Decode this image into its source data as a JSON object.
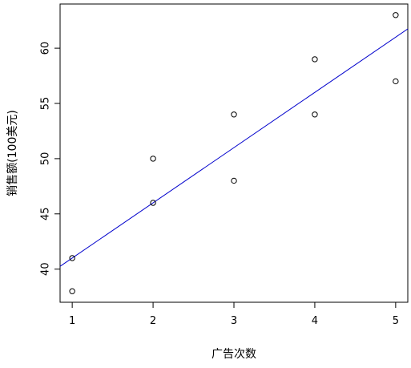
{
  "chart_data": {
    "type": "scatter",
    "xlabel": "广告次数",
    "ylabel": "销售额(100美元)",
    "xlim": [
      0.85,
      5.15
    ],
    "ylim": [
      37.0,
      64.0
    ],
    "x_ticks": [
      1,
      2,
      3,
      4,
      5
    ],
    "y_ticks": [
      40,
      45,
      50,
      55,
      60
    ],
    "points": [
      {
        "x": 1,
        "y": 41
      },
      {
        "x": 1,
        "y": 38
      },
      {
        "x": 2,
        "y": 50
      },
      {
        "x": 2,
        "y": 46
      },
      {
        "x": 3,
        "y": 54
      },
      {
        "x": 3,
        "y": 48
      },
      {
        "x": 4,
        "y": 59
      },
      {
        "x": 4,
        "y": 54
      },
      {
        "x": 5,
        "y": 63
      },
      {
        "x": 5,
        "y": 57
      }
    ],
    "regression_line": {
      "intercept": 36.0,
      "slope": 5.0
    },
    "colors": {
      "points": "#000000",
      "line": "#0000cc",
      "frame": "#000000"
    }
  }
}
